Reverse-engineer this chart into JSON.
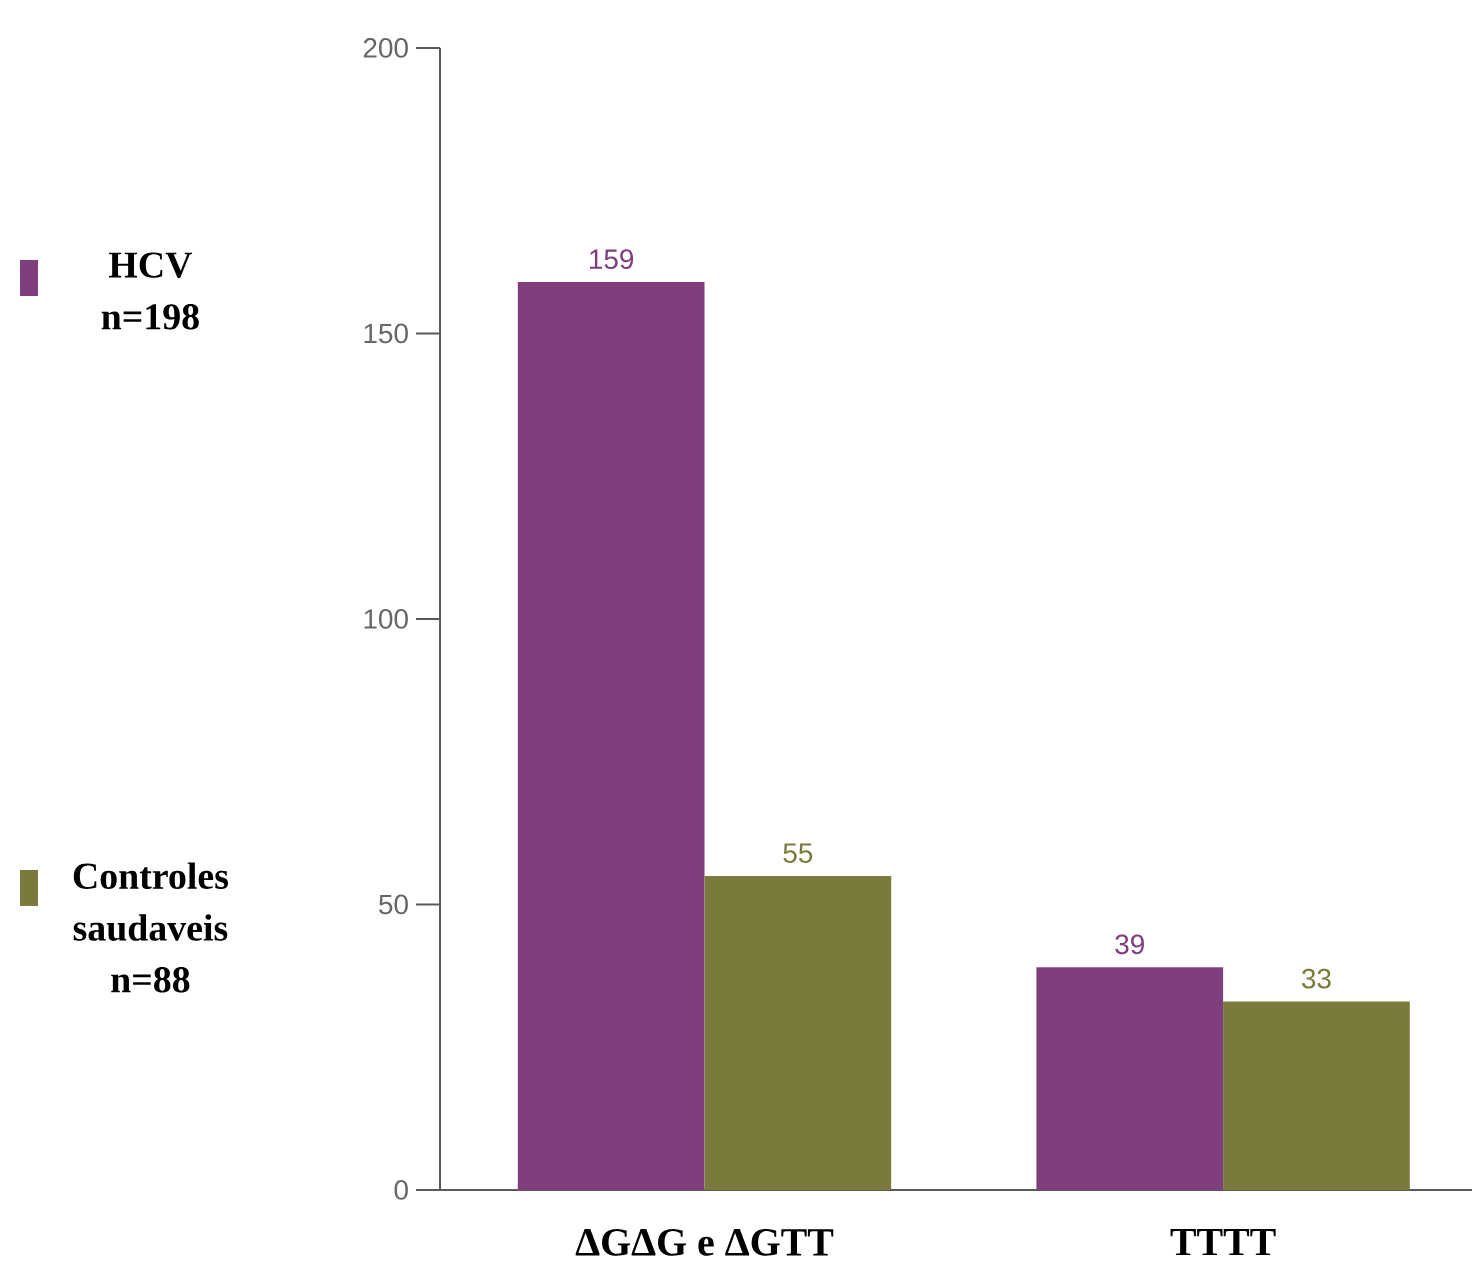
{
  "chart_data": {
    "type": "bar",
    "categories": [
      "ΔGΔG e ΔGTT",
      "TTTT"
    ],
    "series": [
      {
        "name": "HCV n=198",
        "color": "#7f3f7f",
        "values": [
          159,
          39
        ]
      },
      {
        "name": "Controles saudaveis n=88",
        "color": "#7a7a3c",
        "values": [
          55,
          33
        ]
      }
    ],
    "ylim": [
      0,
      200
    ],
    "yticks": [
      0,
      50,
      100,
      150,
      200
    ],
    "data_labels": true,
    "legend": "left"
  }
}
